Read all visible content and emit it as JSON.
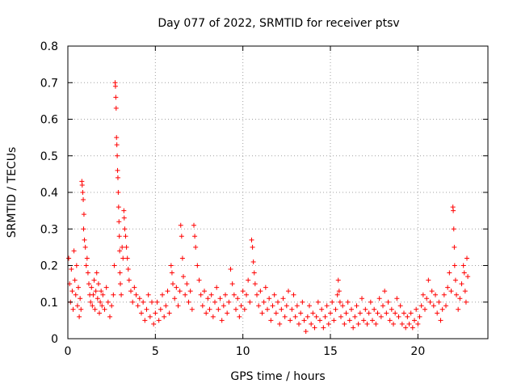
{
  "chart_data": {
    "type": "scatter",
    "title": "Day 077 of 2022, SRMTID for receiver ptsv",
    "xlabel": "GPS time / hours",
    "ylabel": "SRMTID / TECUs",
    "xlim": [
      0,
      24
    ],
    "ylim": [
      0,
      0.8
    ],
    "xticks": [
      0,
      5,
      10,
      15,
      20
    ],
    "yticks": [
      0,
      0.1,
      0.2,
      0.3,
      0.4,
      0.5,
      0.6,
      0.7,
      0.8
    ],
    "x_tick_labels": [
      "0",
      "5",
      "10",
      "15",
      "20"
    ],
    "y_tick_labels": [
      "0",
      "0.1",
      "0.2",
      "0.3",
      "0.4",
      "0.5",
      "0.6",
      "0.7",
      "0.8"
    ],
    "grid": true,
    "marker": "+",
    "series": [
      {
        "name": "ptsv",
        "color": "#ff0000",
        "points": [
          [
            0.05,
            0.22
          ],
          [
            0.1,
            0.15
          ],
          [
            0.15,
            0.1
          ],
          [
            0.2,
            0.19
          ],
          [
            0.25,
            0.13
          ],
          [
            0.3,
            0.08
          ],
          [
            0.35,
            0.24
          ],
          [
            0.4,
            0.16
          ],
          [
            0.45,
            0.12
          ],
          [
            0.5,
            0.2
          ],
          [
            0.55,
            0.09
          ],
          [
            0.6,
            0.14
          ],
          [
            0.65,
            0.06
          ],
          [
            0.7,
            0.11
          ],
          [
            0.75,
            0.08
          ],
          [
            0.8,
            0.43
          ],
          [
            0.82,
            0.42
          ],
          [
            0.85,
            0.4
          ],
          [
            0.88,
            0.38
          ],
          [
            0.9,
            0.3
          ],
          [
            0.92,
            0.34
          ],
          [
            0.95,
            0.27
          ],
          [
            1.0,
            0.25
          ],
          [
            1.05,
            0.2
          ],
          [
            1.1,
            0.22
          ],
          [
            1.15,
            0.18
          ],
          [
            1.2,
            0.15
          ],
          [
            1.25,
            0.12
          ],
          [
            1.3,
            0.1
          ],
          [
            1.35,
            0.14
          ],
          [
            1.4,
            0.09
          ],
          [
            1.45,
            0.12
          ],
          [
            1.5,
            0.16
          ],
          [
            1.55,
            0.08
          ],
          [
            1.6,
            0.13
          ],
          [
            1.65,
            0.18
          ],
          [
            1.7,
            0.11
          ],
          [
            1.75,
            0.15
          ],
          [
            1.8,
            0.07
          ],
          [
            1.85,
            0.1
          ],
          [
            1.9,
            0.13
          ],
          [
            1.95,
            0.09
          ],
          [
            2.0,
            0.12
          ],
          [
            2.1,
            0.08
          ],
          [
            2.2,
            0.14
          ],
          [
            2.3,
            0.1
          ],
          [
            2.4,
            0.06
          ],
          [
            2.5,
            0.09
          ],
          [
            2.6,
            0.12
          ],
          [
            2.65,
            0.2
          ],
          [
            2.7,
            0.7
          ],
          [
            2.72,
            0.69
          ],
          [
            2.74,
            0.66
          ],
          [
            2.76,
            0.63
          ],
          [
            2.78,
            0.55
          ],
          [
            2.8,
            0.53
          ],
          [
            2.82,
            0.5
          ],
          [
            2.84,
            0.46
          ],
          [
            2.86,
            0.44
          ],
          [
            2.88,
            0.4
          ],
          [
            2.9,
            0.36
          ],
          [
            2.92,
            0.32
          ],
          [
            2.94,
            0.28
          ],
          [
            2.96,
            0.24
          ],
          [
            2.98,
            0.18
          ],
          [
            3.0,
            0.15
          ],
          [
            3.05,
            0.12
          ],
          [
            3.1,
            0.25
          ],
          [
            3.15,
            0.22
          ],
          [
            3.2,
            0.35
          ],
          [
            3.22,
            0.33
          ],
          [
            3.25,
            0.3
          ],
          [
            3.3,
            0.28
          ],
          [
            3.35,
            0.25
          ],
          [
            3.4,
            0.22
          ],
          [
            3.45,
            0.19
          ],
          [
            3.5,
            0.16
          ],
          [
            3.6,
            0.13
          ],
          [
            3.7,
            0.1
          ],
          [
            3.8,
            0.14
          ],
          [
            3.9,
            0.12
          ],
          [
            4.0,
            0.09
          ],
          [
            4.1,
            0.11
          ],
          [
            4.2,
            0.07
          ],
          [
            4.3,
            0.1
          ],
          [
            4.4,
            0.05
          ],
          [
            4.5,
            0.08
          ],
          [
            4.6,
            0.12
          ],
          [
            4.7,
            0.06
          ],
          [
            4.8,
            0.1
          ],
          [
            4.9,
            0.04
          ],
          [
            5.0,
            0.07
          ],
          [
            5.1,
            0.1
          ],
          [
            5.2,
            0.05
          ],
          [
            5.3,
            0.08
          ],
          [
            5.4,
            0.12
          ],
          [
            5.5,
            0.06
          ],
          [
            5.6,
            0.09
          ],
          [
            5.7,
            0.13
          ],
          [
            5.8,
            0.07
          ],
          [
            5.9,
            0.2
          ],
          [
            5.95,
            0.18
          ],
          [
            6.0,
            0.15
          ],
          [
            6.1,
            0.11
          ],
          [
            6.2,
            0.14
          ],
          [
            6.3,
            0.09
          ],
          [
            6.4,
            0.13
          ],
          [
            6.45,
            0.31
          ],
          [
            6.5,
            0.28
          ],
          [
            6.55,
            0.22
          ],
          [
            6.6,
            0.17
          ],
          [
            6.7,
            0.12
          ],
          [
            6.8,
            0.15
          ],
          [
            6.9,
            0.1
          ],
          [
            7.0,
            0.13
          ],
          [
            7.1,
            0.08
          ],
          [
            7.2,
            0.31
          ],
          [
            7.25,
            0.28
          ],
          [
            7.3,
            0.25
          ],
          [
            7.4,
            0.2
          ],
          [
            7.5,
            0.16
          ],
          [
            7.6,
            0.12
          ],
          [
            7.7,
            0.09
          ],
          [
            7.8,
            0.13
          ],
          [
            7.9,
            0.07
          ],
          [
            8.0,
            0.11
          ],
          [
            8.1,
            0.08
          ],
          [
            8.2,
            0.12
          ],
          [
            8.3,
            0.06
          ],
          [
            8.4,
            0.1
          ],
          [
            8.5,
            0.14
          ],
          [
            8.6,
            0.08
          ],
          [
            8.7,
            0.11
          ],
          [
            8.8,
            0.05
          ],
          [
            8.9,
            0.09
          ],
          [
            9.0,
            0.12
          ],
          [
            9.1,
            0.07
          ],
          [
            9.2,
            0.1
          ],
          [
            9.3,
            0.19
          ],
          [
            9.4,
            0.15
          ],
          [
            9.5,
            0.12
          ],
          [
            9.6,
            0.08
          ],
          [
            9.7,
            0.11
          ],
          [
            9.8,
            0.06
          ],
          [
            9.9,
            0.09
          ],
          [
            10.0,
            0.13
          ],
          [
            10.1,
            0.08
          ],
          [
            10.2,
            0.12
          ],
          [
            10.3,
            0.16
          ],
          [
            10.4,
            0.1
          ],
          [
            10.5,
            0.27
          ],
          [
            10.55,
            0.25
          ],
          [
            10.6,
            0.21
          ],
          [
            10.65,
            0.18
          ],
          [
            10.7,
            0.15
          ],
          [
            10.8,
            0.12
          ],
          [
            10.9,
            0.09
          ],
          [
            11.0,
            0.13
          ],
          [
            11.1,
            0.07
          ],
          [
            11.2,
            0.1
          ],
          [
            11.3,
            0.14
          ],
          [
            11.4,
            0.08
          ],
          [
            11.5,
            0.11
          ],
          [
            11.6,
            0.05
          ],
          [
            11.7,
            0.09
          ],
          [
            11.8,
            0.12
          ],
          [
            11.9,
            0.07
          ],
          [
            12.0,
            0.1
          ],
          [
            12.1,
            0.04
          ],
          [
            12.2,
            0.08
          ],
          [
            12.3,
            0.11
          ],
          [
            12.4,
            0.06
          ],
          [
            12.5,
            0.09
          ],
          [
            12.6,
            0.13
          ],
          [
            12.7,
            0.05
          ],
          [
            12.8,
            0.08
          ],
          [
            12.9,
            0.12
          ],
          [
            13.0,
            0.06
          ],
          [
            13.1,
            0.09
          ],
          [
            13.2,
            0.04
          ],
          [
            13.3,
            0.07
          ],
          [
            13.4,
            0.1
          ],
          [
            13.5,
            0.05
          ],
          [
            13.6,
            0.02
          ],
          [
            13.7,
            0.06
          ],
          [
            13.8,
            0.09
          ],
          [
            13.9,
            0.04
          ],
          [
            14.0,
            0.07
          ],
          [
            14.1,
            0.03
          ],
          [
            14.2,
            0.06
          ],
          [
            14.3,
            0.1
          ],
          [
            14.4,
            0.05
          ],
          [
            14.5,
            0.08
          ],
          [
            14.6,
            0.03
          ],
          [
            14.7,
            0.06
          ],
          [
            14.8,
            0.09
          ],
          [
            14.9,
            0.04
          ],
          [
            15.0,
            0.07
          ],
          [
            15.1,
            0.1
          ],
          [
            15.2,
            0.05
          ],
          [
            15.3,
            0.08
          ],
          [
            15.4,
            0.12
          ],
          [
            15.45,
            0.16
          ],
          [
            15.5,
            0.13
          ],
          [
            15.55,
            0.1
          ],
          [
            15.6,
            0.06
          ],
          [
            15.7,
            0.09
          ],
          [
            15.8,
            0.04
          ],
          [
            15.9,
            0.07
          ],
          [
            16.0,
            0.1
          ],
          [
            16.1,
            0.05
          ],
          [
            16.2,
            0.08
          ],
          [
            16.3,
            0.03
          ],
          [
            16.4,
            0.06
          ],
          [
            16.5,
            0.09
          ],
          [
            16.6,
            0.04
          ],
          [
            16.7,
            0.07
          ],
          [
            16.8,
            0.11
          ],
          [
            16.9,
            0.05
          ],
          [
            17.0,
            0.08
          ],
          [
            17.1,
            0.04
          ],
          [
            17.2,
            0.07
          ],
          [
            17.3,
            0.1
          ],
          [
            17.4,
            0.05
          ],
          [
            17.5,
            0.08
          ],
          [
            17.6,
            0.04
          ],
          [
            17.7,
            0.07
          ],
          [
            17.8,
            0.11
          ],
          [
            17.9,
            0.06
          ],
          [
            18.0,
            0.09
          ],
          [
            18.1,
            0.13
          ],
          [
            18.2,
            0.07
          ],
          [
            18.3,
            0.1
          ],
          [
            18.4,
            0.05
          ],
          [
            18.5,
            0.08
          ],
          [
            18.6,
            0.04
          ],
          [
            18.7,
            0.07
          ],
          [
            18.8,
            0.11
          ],
          [
            18.9,
            0.06
          ],
          [
            19.0,
            0.09
          ],
          [
            19.1,
            0.04
          ],
          [
            19.2,
            0.07
          ],
          [
            19.3,
            0.03
          ],
          [
            19.4,
            0.06
          ],
          [
            19.5,
            0.04
          ],
          [
            19.6,
            0.07
          ],
          [
            19.7,
            0.03
          ],
          [
            19.8,
            0.05
          ],
          [
            19.9,
            0.08
          ],
          [
            20.0,
            0.04
          ],
          [
            20.1,
            0.06
          ],
          [
            20.2,
            0.09
          ],
          [
            20.3,
            0.12
          ],
          [
            20.4,
            0.08
          ],
          [
            20.5,
            0.11
          ],
          [
            20.6,
            0.16
          ],
          [
            20.7,
            0.1
          ],
          [
            20.8,
            0.13
          ],
          [
            20.9,
            0.09
          ],
          [
            21.0,
            0.12
          ],
          [
            21.1,
            0.07
          ],
          [
            21.2,
            0.1
          ],
          [
            21.3,
            0.05
          ],
          [
            21.4,
            0.08
          ],
          [
            21.5,
            0.12
          ],
          [
            21.6,
            0.09
          ],
          [
            21.7,
            0.14
          ],
          [
            21.8,
            0.18
          ],
          [
            21.9,
            0.13
          ],
          [
            22.0,
            0.36
          ],
          [
            22.02,
            0.35
          ],
          [
            22.05,
            0.3
          ],
          [
            22.08,
            0.25
          ],
          [
            22.1,
            0.2
          ],
          [
            22.15,
            0.16
          ],
          [
            22.2,
            0.12
          ],
          [
            22.3,
            0.08
          ],
          [
            22.4,
            0.11
          ],
          [
            22.5,
            0.15
          ],
          [
            22.6,
            0.2
          ],
          [
            22.65,
            0.18
          ],
          [
            22.7,
            0.13
          ],
          [
            22.75,
            0.1
          ],
          [
            22.8,
            0.22
          ],
          [
            22.85,
            0.17
          ]
        ]
      }
    ]
  }
}
